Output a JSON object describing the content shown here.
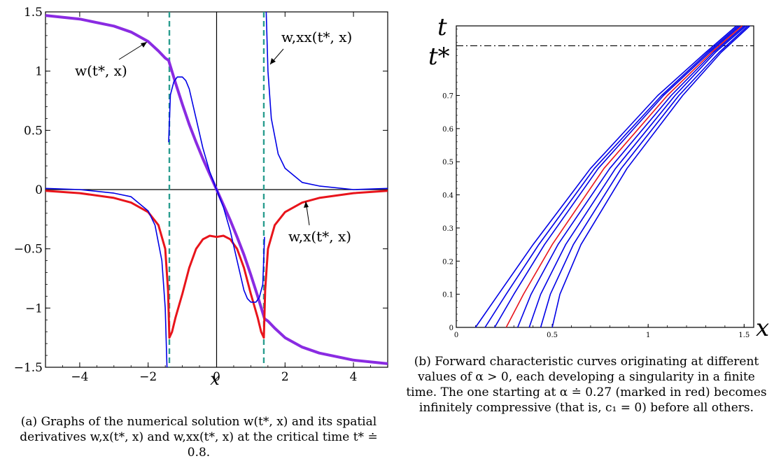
{
  "chart_data": [
    {
      "type": "line",
      "panel": "a",
      "xlabel": "x",
      "ylabel": "",
      "xlim": [
        -5,
        5
      ],
      "ylim": [
        -1.5,
        1.5
      ],
      "x_ticks": [
        -4,
        -2,
        0,
        2,
        4
      ],
      "x_tick_labels": [
        "−4",
        "−2",
        "0",
        "2",
        "4"
      ],
      "y_ticks": [
        1.5,
        1,
        0.5,
        0,
        -0.5,
        -1,
        -1.5
      ],
      "y_tick_labels": [
        "1.5",
        "1",
        "0.5",
        "0",
        "−0.5",
        "−1",
        "−1.5"
      ],
      "grid": false,
      "series": [
        {
          "name": "w(t*, x)",
          "color": "#8a2be2",
          "x": [
            -5,
            -4,
            -3,
            -2.5,
            -2,
            -1.7,
            -1.5,
            -1.4,
            -1.2,
            -1,
            -0.8,
            -0.6,
            -0.4,
            -0.2,
            0,
            0.2,
            0.4,
            0.6,
            0.8,
            1,
            1.2,
            1.4,
            1.5,
            1.7,
            2,
            2.5,
            3,
            4,
            5
          ],
          "values": [
            1.47,
            1.44,
            1.38,
            1.33,
            1.25,
            1.17,
            1.11,
            1.09,
            0.9,
            0.72,
            0.55,
            0.4,
            0.26,
            0.13,
            0,
            -0.13,
            -0.26,
            -0.4,
            -0.55,
            -0.72,
            -0.9,
            -1.09,
            -1.11,
            -1.17,
            -1.25,
            -1.33,
            -1.38,
            -1.44,
            -1.47
          ]
        },
        {
          "name": "w,x(t*, x)",
          "color": "#e8141b",
          "x": [
            -5,
            -4,
            -3,
            -2.5,
            -2,
            -1.7,
            -1.5,
            -1.42,
            -1.38,
            -1.3,
            -1.2,
            -1,
            -0.8,
            -0.6,
            -0.4,
            -0.2,
            0,
            0.2,
            0.4,
            0.6,
            0.8,
            1,
            1.2,
            1.3,
            1.38,
            1.42,
            1.5,
            1.7,
            2,
            2.5,
            3,
            4,
            5
          ],
          "values": [
            -0.01,
            -0.03,
            -0.07,
            -0.11,
            -0.19,
            -0.3,
            -0.5,
            -0.85,
            -1.25,
            -1.2,
            -1.08,
            -0.88,
            -0.66,
            -0.5,
            -0.42,
            -0.39,
            -0.4,
            -0.39,
            -0.42,
            -0.5,
            -0.66,
            -0.88,
            -1.08,
            -1.2,
            -1.25,
            -0.85,
            -0.5,
            -0.3,
            -0.19,
            -0.11,
            -0.07,
            -0.03,
            -0.01
          ]
        },
        {
          "name": "w,xx(t*, x)",
          "color": "#0000e6",
          "x": [
            -5,
            -4,
            -3,
            -2.5,
            -2,
            -1.8,
            -1.6,
            -1.5,
            -1.45,
            -1.4,
            -1.35,
            -1.25,
            -1.15,
            -1,
            -0.9,
            -0.8,
            -0.6,
            -0.4,
            -0.2,
            0,
            0.2,
            0.4,
            0.6,
            0.8,
            0.9,
            1,
            1.15,
            1.25,
            1.35,
            1.4,
            1.45,
            1.5,
            1.6,
            1.8,
            2,
            2.5,
            3,
            4,
            5
          ],
          "values": [
            0.01,
            0.0,
            -0.03,
            -0.06,
            -0.18,
            -0.3,
            -0.6,
            -1.0,
            -1.5,
            0.4,
            0.8,
            0.91,
            0.95,
            0.95,
            0.92,
            0.85,
            0.6,
            0.35,
            0.15,
            0,
            -0.15,
            -0.35,
            -0.6,
            -0.85,
            -0.92,
            -0.95,
            -0.95,
            -0.91,
            -0.8,
            -0.4,
            1.5,
            1.0,
            0.6,
            0.3,
            0.18,
            0.06,
            0.03,
            0.0,
            0.01
          ]
        }
      ],
      "vertical_lines": [
        {
          "x": -1.38,
          "color": "#2a9d8f",
          "style": "dashed"
        },
        {
          "x": 1.38,
          "color": "#2a9d8f",
          "style": "dashed"
        }
      ],
      "annotations": {
        "w": "w(t*, x)",
        "wx": "w,x(t*, x)",
        "wxx": "w,xx(t*, x)"
      },
      "caption": "(a) Graphs of the numerical solution w(t*, x) and its spatial derivatives w,x(t*, x) and w,xx(t*, x) at the critical time t* ≐ 0.8."
    },
    {
      "type": "line",
      "panel": "b",
      "xlabel": "x",
      "ylabel": "t",
      "xlim": [
        0,
        1.55
      ],
      "ylim": [
        0,
        0.91
      ],
      "x_ticks": [
        0,
        0.5,
        1,
        1.5
      ],
      "x_tick_labels": [
        "0",
        "0.5",
        "1",
        "1.5"
      ],
      "y_ticks": [
        0,
        0.1,
        0.2,
        0.3,
        0.4,
        0.5,
        0.6,
        0.7
      ],
      "y_tick_labels": [
        "0",
        "0.1",
        "0.2",
        "0.3",
        "0.4",
        "0.5",
        "0.6",
        "0.7"
      ],
      "t_star_label": "t*",
      "t_star": 0.85,
      "grid": false,
      "characteristics": [
        {
          "alpha": 0.1,
          "color": "#0000e6",
          "points": [
            [
              0.1,
              0
            ],
            [
              0.22,
              0.1
            ],
            [
              0.4,
              0.25
            ],
            [
              0.7,
              0.48
            ],
            [
              1.05,
              0.7
            ],
            [
              1.3,
              0.83
            ],
            [
              1.46,
              0.91
            ]
          ]
        },
        {
          "alpha": 0.15,
          "color": "#0000e6",
          "points": [
            [
              0.15,
              0
            ],
            [
              0.26,
              0.1
            ],
            [
              0.43,
              0.25
            ],
            [
              0.72,
              0.48
            ],
            [
              1.07,
              0.7
            ],
            [
              1.31,
              0.83
            ],
            [
              1.47,
              0.91
            ]
          ]
        },
        {
          "alpha": 0.2,
          "color": "#0000e6",
          "points": [
            [
              0.2,
              0
            ],
            [
              0.3,
              0.1
            ],
            [
              0.46,
              0.25
            ],
            [
              0.74,
              0.48
            ],
            [
              1.08,
              0.7
            ],
            [
              1.32,
              0.83
            ],
            [
              1.48,
              0.91
            ]
          ]
        },
        {
          "alpha": 0.27,
          "color": "#e8141b",
          "points": [
            [
              0.26,
              0
            ],
            [
              0.35,
              0.1
            ],
            [
              0.5,
              0.25
            ],
            [
              0.77,
              0.48
            ],
            [
              1.1,
              0.7
            ],
            [
              1.33,
              0.83
            ],
            [
              1.49,
              0.91
            ]
          ]
        },
        {
          "alpha": 0.32,
          "color": "#0000e6",
          "points": [
            [
              0.32,
              0
            ],
            [
              0.39,
              0.1
            ],
            [
              0.53,
              0.25
            ],
            [
              0.8,
              0.48
            ],
            [
              1.12,
              0.7
            ],
            [
              1.34,
              0.83
            ],
            [
              1.5,
              0.91
            ]
          ]
        },
        {
          "alpha": 0.38,
          "color": "#0000e6",
          "points": [
            [
              0.38,
              0
            ],
            [
              0.44,
              0.1
            ],
            [
              0.57,
              0.25
            ],
            [
              0.83,
              0.48
            ],
            [
              1.14,
              0.7
            ],
            [
              1.35,
              0.83
            ],
            [
              1.51,
              0.91
            ]
          ]
        },
        {
          "alpha": 0.44,
          "color": "#0000e6",
          "points": [
            [
              0.44,
              0
            ],
            [
              0.49,
              0.1
            ],
            [
              0.61,
              0.25
            ],
            [
              0.86,
              0.48
            ],
            [
              1.16,
              0.7
            ],
            [
              1.37,
              0.83
            ],
            [
              1.52,
              0.91
            ]
          ]
        },
        {
          "alpha": 0.5,
          "color": "#0000e6",
          "points": [
            [
              0.5,
              0
            ],
            [
              0.54,
              0.1
            ],
            [
              0.65,
              0.25
            ],
            [
              0.89,
              0.48
            ],
            [
              1.18,
              0.7
            ],
            [
              1.38,
              0.83
            ],
            [
              1.53,
              0.91
            ]
          ]
        }
      ],
      "caption": "(b) Forward characteristic curves originating at different values of α > 0, each developing a singularity in a finite time. The one starting at α ≐ 0.27 (marked in red) becomes infinitely compressive (that is, c₁ = 0) before all others."
    }
  ]
}
